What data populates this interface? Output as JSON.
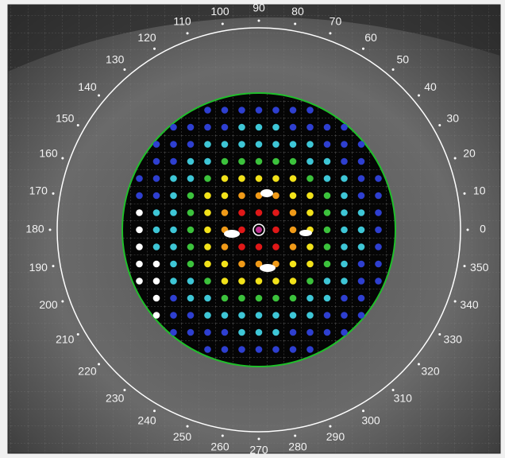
{
  "angle_labels": [
    0,
    10,
    20,
    30,
    40,
    50,
    60,
    70,
    80,
    90,
    100,
    110,
    120,
    130,
    140,
    150,
    160,
    170,
    180,
    190,
    200,
    210,
    220,
    230,
    240,
    250,
    260,
    270,
    280,
    290,
    300,
    310,
    320,
    330,
    340,
    350
  ]
}
